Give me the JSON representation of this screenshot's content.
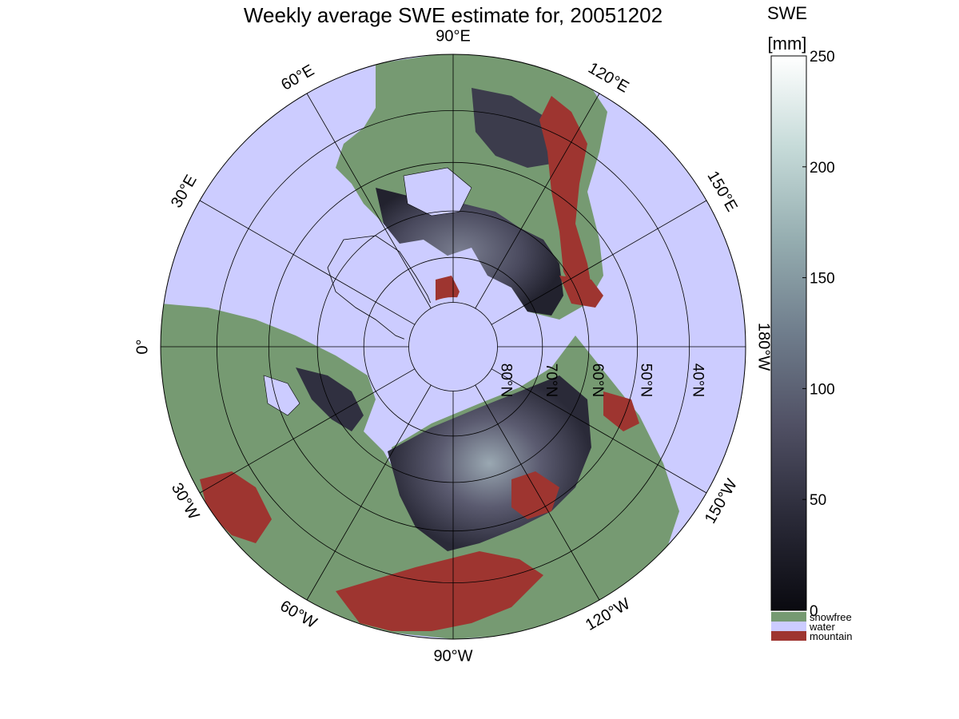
{
  "title": "Weekly average SWE estimate for, 20051202",
  "colorbar": {
    "heading": "SWE",
    "unit": "[mm]",
    "min": 0,
    "max": 250,
    "ticks": [
      "0",
      "50",
      "100",
      "150",
      "200",
      "250"
    ],
    "tick_values": [
      0,
      50,
      100,
      150,
      200,
      250
    ],
    "gradient": [
      "#0a0a10",
      "#2a2a38",
      "#505064",
      "#6f7d8c",
      "#95adb0",
      "#c5dad8",
      "#ffffff"
    ]
  },
  "legend": [
    {
      "label": "snowfree",
      "color": "#769a72"
    },
    {
      "label": "water",
      "color": "#ccccff"
    },
    {
      "label": "mountain",
      "color": "#9e3530"
    }
  ],
  "map": {
    "projection": "north-polar-stereographic",
    "longitude_labels": [
      {
        "text": "90°W",
        "lon": -90
      },
      {
        "text": "120°W",
        "lon": -120
      },
      {
        "text": "150°W",
        "lon": -150
      },
      {
        "text": "180°W",
        "lon": 180
      },
      {
        "text": "150°E",
        "lon": 150
      },
      {
        "text": "120°E",
        "lon": 120
      },
      {
        "text": "90°E",
        "lon": 90
      },
      {
        "text": "60°E",
        "lon": 60
      },
      {
        "text": "30°E",
        "lon": 30
      },
      {
        "text": "0°",
        "lon": 0
      },
      {
        "text": "30°W",
        "lon": -30
      },
      {
        "text": "60°W",
        "lon": -60
      }
    ],
    "latitude_labels": [
      "80°N",
      "70°N",
      "60°N",
      "50°N",
      "40°N"
    ],
    "latitude_circles": [
      80,
      70,
      60,
      50,
      40
    ],
    "colors": {
      "water": "#ccccff",
      "land": "#769a72",
      "mountain": "#9e3530",
      "snow_dark": "#1e1e2a",
      "snow_mid": "#4a4a5e",
      "snow_light": "#8c9ca8"
    }
  }
}
